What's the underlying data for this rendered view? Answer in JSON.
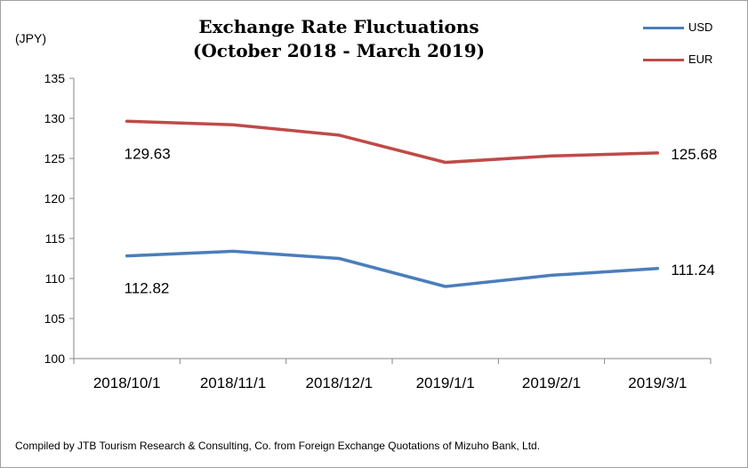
{
  "chart_data": {
    "type": "line",
    "title_line1": "Exchange Rate Fluctuations",
    "title_line2": "(October 2018 - March 2019)",
    "ylabel": "(JPY)",
    "categories": [
      "2018/10/1",
      "2018/11/1",
      "2018/12/1",
      "2019/1/1",
      "2019/2/1",
      "2019/3/1"
    ],
    "ylim": [
      100,
      135
    ],
    "yticks": [
      100,
      105,
      110,
      115,
      120,
      125,
      130,
      135
    ],
    "grid": false,
    "legend_position": "top-right",
    "series": [
      {
        "name": "USD",
        "color": "#4a7ebb",
        "values": [
          112.82,
          113.4,
          112.5,
          109.0,
          110.4,
          111.24
        ],
        "labels": {
          "first": "112.82",
          "last": "111.24"
        }
      },
      {
        "name": "EUR",
        "color": "#be4b48",
        "values": [
          129.63,
          129.2,
          127.9,
          124.5,
          125.3,
          125.68
        ],
        "labels": {
          "first": "129.63",
          "last": "125.68"
        }
      }
    ],
    "source_note": "Compiled by JTB Tourism Research & Consulting, Co. from Foreign Exchange Quotations of Mizuho Bank, Ltd."
  }
}
